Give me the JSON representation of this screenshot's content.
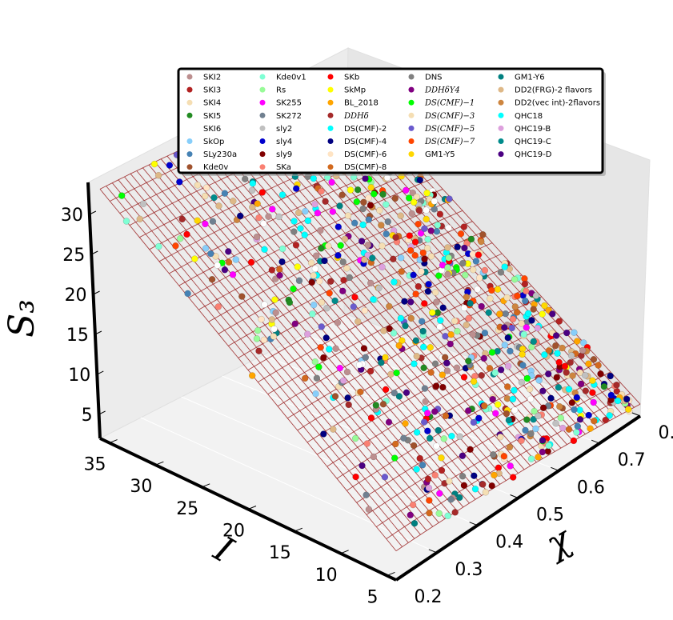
{
  "chart_data": {
    "type": "surface-3d-scatter",
    "axes": {
      "x": {
        "label": "χ",
        "ticks": [
          "0.2",
          "0.3",
          "0.4",
          "0.5",
          "0.6",
          "0.7",
          "0.8"
        ],
        "range": [
          0.2,
          0.8
        ]
      },
      "y": {
        "label": "I",
        "ticks": [
          "5",
          "10",
          "15",
          "20",
          "25",
          "30",
          "35"
        ],
        "range": [
          4,
          36
        ]
      },
      "z": {
        "label": "S₃",
        "ticks": [
          "5",
          "10",
          "15",
          "20",
          "25",
          "30"
        ],
        "range": [
          2,
          34
        ]
      }
    },
    "grid": true,
    "legend_placement": "top",
    "surface_color": "#9b2424",
    "legend": [
      {
        "label": "SKI2",
        "color": "#bc8f8f"
      },
      {
        "label": "SKI3",
        "color": "#b22222"
      },
      {
        "label": "SKI4",
        "color": "#f5deb3"
      },
      {
        "label": "SKI5",
        "color": "#228b22"
      },
      {
        "label": "SKI6",
        "color": "#ffffff"
      },
      {
        "label": "SkOp",
        "color": "#87cefa"
      },
      {
        "label": "SLy230a",
        "color": "#4682b4"
      },
      {
        "label": "Kde0v",
        "color": "#a0522d"
      },
      {
        "label": "Kde0v1",
        "color": "#7fffd4"
      },
      {
        "label": "Rs",
        "color": "#98fb98"
      },
      {
        "label": "SK255",
        "color": "#ff00ff"
      },
      {
        "label": "SK272",
        "color": "#708090"
      },
      {
        "label": "sly2",
        "color": "#c0c0c0"
      },
      {
        "label": "sly4",
        "color": "#0000cd"
      },
      {
        "label": "sly9",
        "color": "#800000"
      },
      {
        "label": "SKa",
        "color": "#fa8072"
      },
      {
        "label": "SKb",
        "color": "#ff0000"
      },
      {
        "label": "SkMp",
        "color": "#ffff00"
      },
      {
        "label": "BL_2018",
        "color": "#ffa500"
      },
      {
        "label": "DDHδ",
        "color": "#a52a2a",
        "math": true
      },
      {
        "label": "DS(CMF)-2",
        "color": "#00ffff"
      },
      {
        "label": "DS(CMF)-4",
        "color": "#000080"
      },
      {
        "label": "DS(CMF)-6",
        "color": "#ffe4c4"
      },
      {
        "label": "DS(CMF)-8",
        "color": "#d2691e"
      },
      {
        "label": "DNS",
        "color": "#808080"
      },
      {
        "label": "DDHδY4",
        "color": "#800080",
        "math": true
      },
      {
        "label": "DS(CMF)−1",
        "color": "#00ff00",
        "math": true
      },
      {
        "label": "DS(CMF)−3",
        "color": "#f5deb3",
        "math": true
      },
      {
        "label": "DS(CMF)−5",
        "color": "#6a5acd",
        "math": true
      },
      {
        "label": "DS(CMF)−7",
        "color": "#ff4500",
        "math": true
      },
      {
        "label": "GM1-Y5",
        "color": "#ffd700"
      },
      {
        "label": "GM1-Y6",
        "color": "#008080"
      },
      {
        "label": "DD2(FRG)-2 flavors",
        "color": "#deb887"
      },
      {
        "label": "DD2(vec int)-2flavors",
        "color": "#cd853f"
      },
      {
        "label": "QHC18",
        "color": "#00ffff"
      },
      {
        "label": "QHC19-B",
        "color": "#dda0dd"
      },
      {
        "label": "QHC19-C",
        "color": "#008b8b"
      },
      {
        "label": "QHC19-D",
        "color": "#4b0082"
      }
    ]
  }
}
